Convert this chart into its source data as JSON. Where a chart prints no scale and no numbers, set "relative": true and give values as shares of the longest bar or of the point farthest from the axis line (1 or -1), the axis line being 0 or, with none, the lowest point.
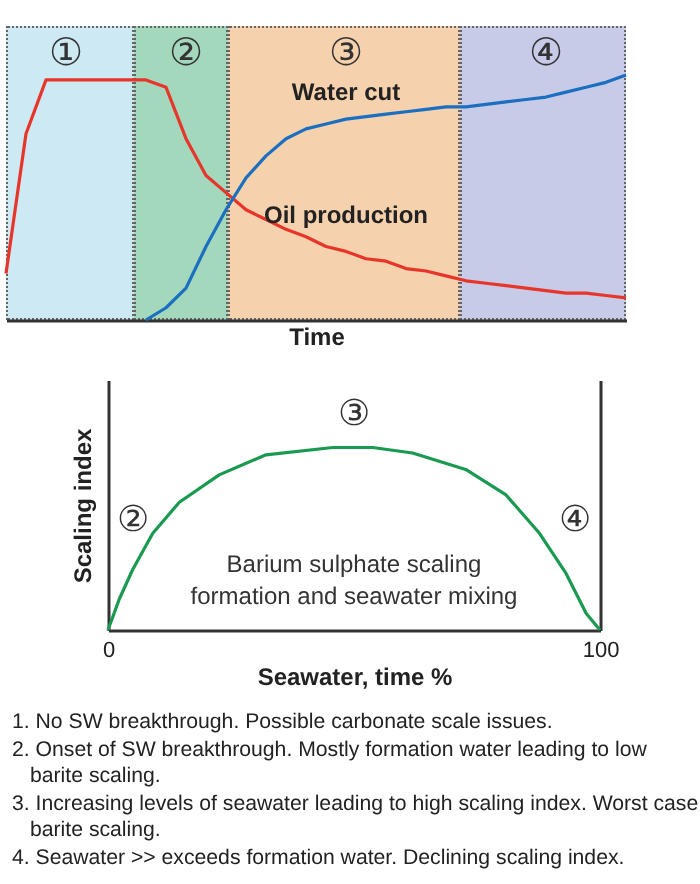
{
  "chart_data": [
    {
      "type": "line",
      "relative": true,
      "xlabel": "Time",
      "tick_labels": false,
      "line_style": "solid",
      "marker": "none",
      "categories": [
        null,
        null,
        null,
        null,
        null,
        null,
        null,
        null,
        null,
        null,
        null,
        null,
        null,
        null,
        null,
        null,
        null,
        null,
        null,
        null,
        null,
        null,
        null,
        null,
        null,
        null,
        null,
        null,
        null,
        null,
        null,
        null
      ],
      "series": [
        {
          "name": "Oil production",
          "color": "#e8352a",
          "values": [
            0.19,
            0.76,
            0.98,
            0.98,
            0.98,
            0.98,
            0.98,
            0.98,
            0.95,
            0.74,
            0.59,
            0.52,
            0.45,
            0.41,
            0.37,
            0.34,
            0.3,
            0.28,
            0.25,
            0.24,
            0.21,
            0.2,
            0.18,
            0.16,
            0.15,
            0.14,
            0.13,
            0.12,
            0.11,
            0.11,
            0.1,
            0.09
          ]
        },
        {
          "name": "Water cut",
          "color": "#1a6fc0",
          "values": [
            null,
            null,
            null,
            null,
            null,
            null,
            null,
            0,
            0.05,
            0.13,
            0.3,
            0.45,
            0.58,
            0.67,
            0.74,
            0.78,
            0.8,
            0.82,
            0.83,
            0.84,
            0.85,
            0.86,
            0.87,
            0.87,
            0.88,
            0.89,
            0.9,
            0.91,
            0.93,
            0.95,
            0.97,
            1
          ]
        }
      ],
      "annotations": [
        "①",
        "②",
        "③",
        "④"
      ]
    },
    {
      "type": "line",
      "relative": true,
      "xlabel": "Seawater, time %",
      "ylabel": "Scaling index",
      "tick_labels": "x",
      "xlim": [
        0,
        100
      ],
      "xticks": [
        0,
        100
      ],
      "line_style": "solid",
      "marker": "none",
      "x": [
        0,
        2.3,
        5,
        9.1,
        14.5,
        22.6,
        32.1,
        45.7,
        53.8,
        61.9,
        72.7,
        80.9,
        87.7,
        93.1,
        97.2,
        100
      ],
      "values": [
        0,
        0.17,
        0.33,
        0.53,
        0.7,
        0.85,
        0.96,
        1,
        1,
        0.97,
        0.88,
        0.74,
        0.53,
        0.31,
        0.09,
        0
      ],
      "color": "#1a9a50",
      "annotations": [
        "②",
        "③",
        "④",
        "Barium sulphate scaling\nformation and seawater mixing",
        "1. No SW breakthrough. Possible carbonate scale issues.",
        "2. Onset of SW breakthrough. Mostly formation water leading to low barite scaling.",
        "3. Increasing  levels of seawater leading to high scaling index. Worst case barite scaling.",
        "4. Seawater >> exceeds formation water. Declining scaling index."
      ]
    }
  ]
}
